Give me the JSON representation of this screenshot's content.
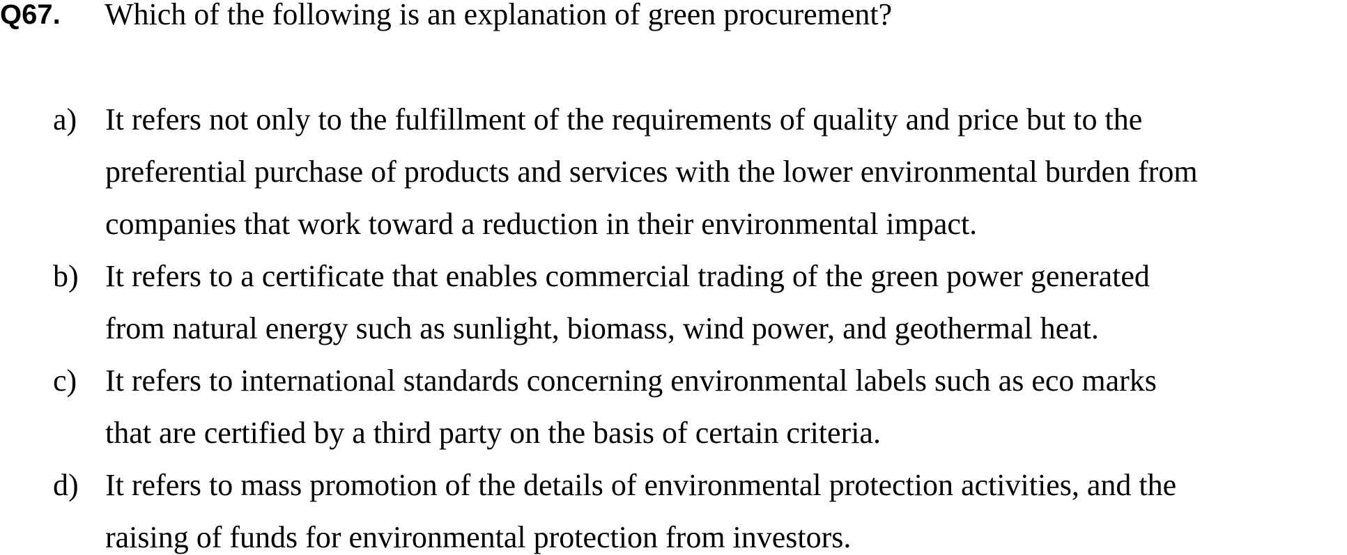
{
  "question": {
    "number": "Q67.",
    "text": "Which of the following is an explanation of green procurement?"
  },
  "options": [
    {
      "label": "a)",
      "lines": [
        "It refers not only to the fulfillment of the requirements of quality and price but to the",
        "preferential purchase of products and services with the lower environmental burden from",
        "companies that work toward a reduction in their environmental impact."
      ]
    },
    {
      "label": "b)",
      "lines": [
        "It refers to a certificate that enables commercial trading of the green power generated",
        "from natural energy such as sunlight, biomass, wind power, and geothermal heat."
      ]
    },
    {
      "label": "c)",
      "lines": [
        "It refers to international standards concerning environmental labels such as eco marks",
        "that are certified by a third party on the basis of certain criteria."
      ]
    },
    {
      "label": "d)",
      "lines": [
        "It refers to mass promotion of the details of environmental protection activities, and the",
        "raising of funds for environmental protection from investors."
      ]
    }
  ]
}
